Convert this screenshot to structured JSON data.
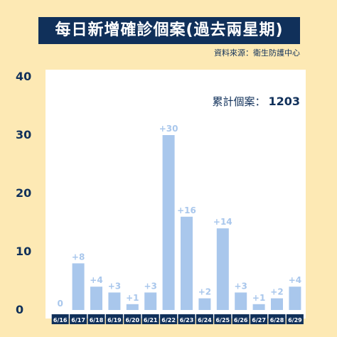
{
  "header": {
    "title": "每日新增確診個案(過去兩星期)",
    "source": "資料來源：衛生防護中心"
  },
  "summary": {
    "label": "累計個案：",
    "value": "1203"
  },
  "colors": {
    "background": "#fde9b4",
    "title_bg": "#10305a",
    "bar": "#a9c7ec",
    "label": "#a9c7ec",
    "axis_text": "#10305a",
    "category_bg": "#10305a"
  },
  "chart_data": {
    "type": "bar",
    "title": "每日新增確診個案(過去兩星期)",
    "categories": [
      "6/16",
      "6/17",
      "6/18",
      "6/19",
      "6/20",
      "6/21",
      "6/22",
      "6/23",
      "6/24",
      "6/25",
      "6/26",
      "6/27",
      "6/28",
      "6/29"
    ],
    "values": [
      0,
      8,
      4,
      3,
      1,
      3,
      30,
      16,
      2,
      14,
      3,
      1,
      2,
      4
    ],
    "data_labels": [
      "0",
      "+8",
      "+4",
      "+3",
      "+1",
      "+3",
      "+30",
      "+16",
      "+2",
      "+14",
      "+3",
      "+1",
      "+2",
      "+4"
    ],
    "ylim": [
      0,
      40
    ],
    "yticks": [
      "0",
      "10",
      "20",
      "30",
      "40"
    ],
    "grid": true,
    "xlabel": "",
    "ylabel": ""
  }
}
